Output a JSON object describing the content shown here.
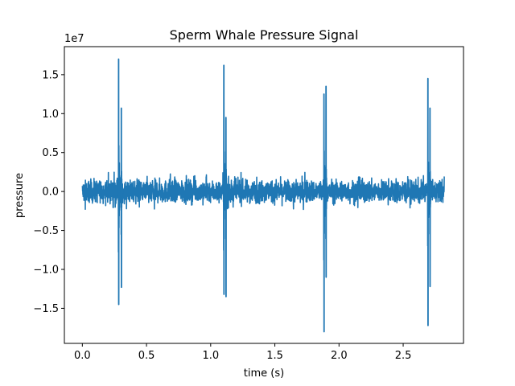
{
  "chart_data": {
    "type": "line",
    "title": "Sperm Whale Pressure Signal",
    "xlabel": "time (s)",
    "ylabel": "pressure",
    "offset_text": "1e7",
    "xlim": [
      -0.14,
      2.97
    ],
    "ylim": [
      -1.95,
      1.86
    ],
    "y_scale_factor": 10000000,
    "x_ticks": [
      0.0,
      0.5,
      1.0,
      1.5,
      2.0,
      2.5
    ],
    "x_tick_labels": [
      "0.0",
      "0.5",
      "1.0",
      "1.5",
      "2.0",
      "2.5"
    ],
    "y_ticks": [
      -1.5,
      -1.0,
      -0.5,
      0.0,
      0.5,
      1.0,
      1.5
    ],
    "y_tick_labels": [
      "−1.5",
      "−1.0",
      "−0.5",
      "0.0",
      "0.5",
      "1.0",
      "1.5"
    ],
    "grid": false,
    "series": [
      {
        "color": "#1f77b4",
        "noise_band": {
          "x_start": 0.0,
          "x_end": 2.82,
          "amplitude": 0.15,
          "max_spike": 0.25
        },
        "clicks": [
          {
            "t": 0.285,
            "y_max": 1.7,
            "y_min": -1.45,
            "echo_t": 0.305,
            "echo_max": 1.07,
            "echo_min": -1.23
          },
          {
            "t": 1.105,
            "y_max": 1.62,
            "y_min": -1.32,
            "echo_t": 1.12,
            "echo_max": 0.95,
            "echo_min": -1.35
          },
          {
            "t": 1.885,
            "y_max": 1.25,
            "y_min": -1.8,
            "echo_t": 1.9,
            "echo_max": 1.35,
            "echo_min": -1.1
          },
          {
            "t": 2.695,
            "y_max": 1.45,
            "y_min": -1.72,
            "echo_t": 2.71,
            "echo_max": 1.07,
            "echo_min": -1.22
          }
        ]
      }
    ]
  }
}
